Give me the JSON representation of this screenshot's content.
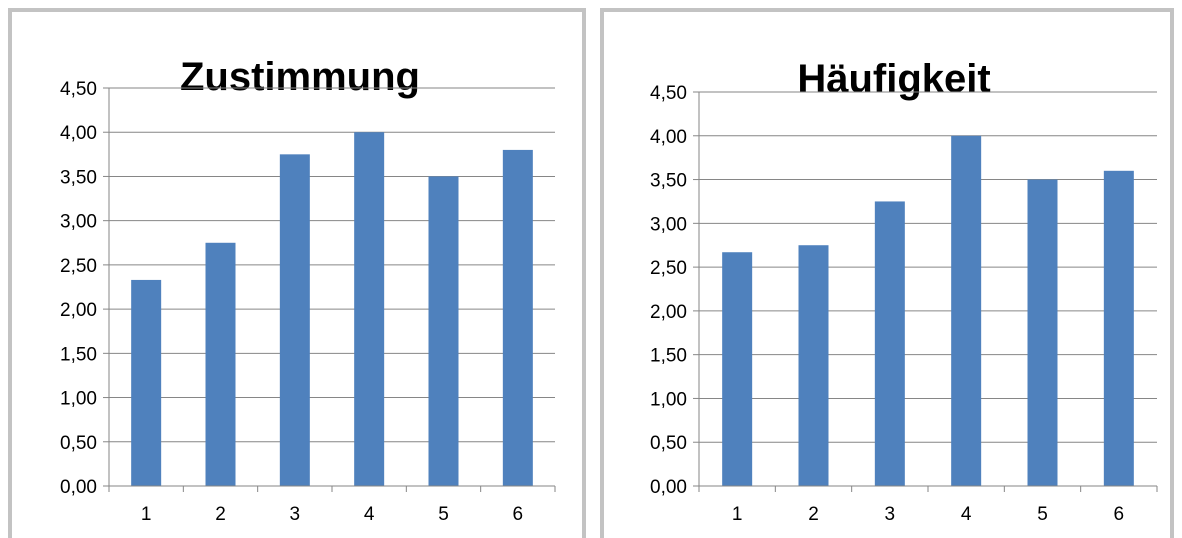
{
  "chart_data": [
    {
      "type": "bar",
      "title": "Zustimmung",
      "categories": [
        "1",
        "2",
        "3",
        "4",
        "5",
        "6"
      ],
      "values": [
        2.33,
        2.75,
        3.75,
        4.0,
        3.5,
        3.8
      ],
      "ylim": [
        0,
        4.5
      ],
      "yticks": [
        "0,00",
        "0,50",
        "1,00",
        "1,50",
        "2,00",
        "2,50",
        "3,00",
        "3,50",
        "4,00",
        "4,50"
      ],
      "grid": true,
      "xlabel": "",
      "ylabel": "",
      "bar_color": "#4f81bd"
    },
    {
      "type": "bar",
      "title": "Häufigkeit",
      "categories": [
        "1",
        "2",
        "3",
        "4",
        "5",
        "6"
      ],
      "values": [
        2.67,
        2.75,
        3.25,
        4.0,
        3.5,
        3.6
      ],
      "ylim": [
        0,
        4.5
      ],
      "yticks": [
        "0,00",
        "0,50",
        "1,00",
        "1,50",
        "2,00",
        "2,50",
        "3,00",
        "3,50",
        "4,00",
        "4,50"
      ],
      "grid": true,
      "xlabel": "",
      "ylabel": "",
      "bar_color": "#4f81bd"
    }
  ]
}
